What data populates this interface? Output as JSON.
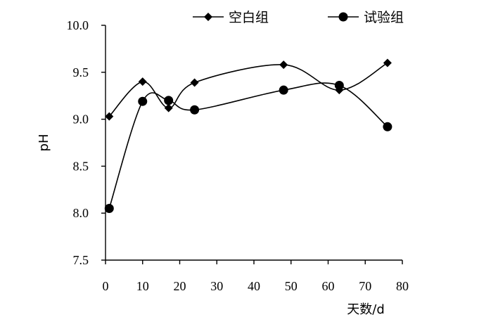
{
  "chart_data": {
    "type": "line",
    "xlabel": "天数/d",
    "ylabel": "pH",
    "xlim": [
      0,
      80
    ],
    "ylim": [
      7.5,
      10.0
    ],
    "x_ticks": [
      0,
      10,
      20,
      30,
      40,
      50,
      60,
      70,
      80
    ],
    "y_ticks": [
      7.5,
      8.0,
      8.5,
      9.0,
      9.5,
      10.0
    ],
    "y_tick_labels": [
      "7.5",
      "8.0",
      "8.5",
      "9.0",
      "9.5",
      "10.0"
    ],
    "grid": false,
    "legend_position": "top",
    "series": [
      {
        "name": "空白组",
        "marker": "diamond",
        "x": [
          1,
          10,
          17,
          24,
          48,
          63,
          76
        ],
        "y": [
          9.03,
          9.4,
          9.12,
          9.39,
          9.58,
          9.31,
          9.6
        ]
      },
      {
        "name": "试验组",
        "marker": "circle",
        "x": [
          1,
          10,
          17,
          24,
          48,
          63,
          76
        ],
        "y": [
          8.05,
          9.19,
          9.2,
          9.1,
          9.31,
          9.36,
          8.92
        ]
      }
    ]
  }
}
